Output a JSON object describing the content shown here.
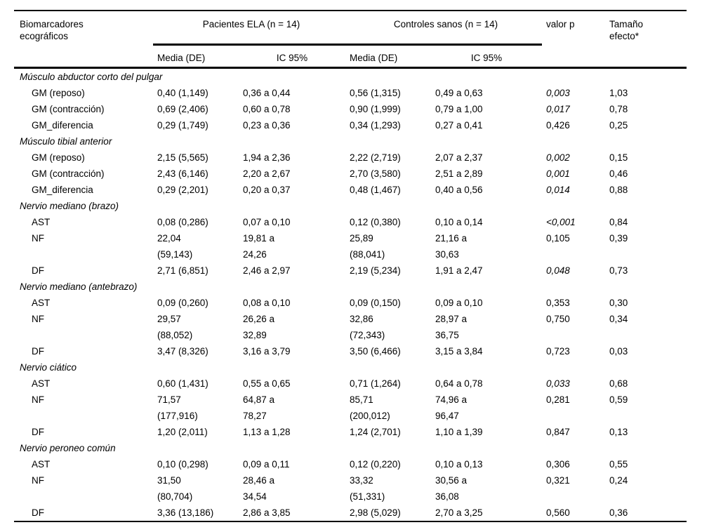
{
  "header": {
    "stub": "Biomarcadores\necográficos",
    "group_ela": "Pacientes ELA (n = 14)",
    "group_controls": "Controles sanos (n = 14)",
    "valor_p": "valor p",
    "effect_size": "Tamaño\nefecto*",
    "media_de_ela": "Media (DE)",
    "ic95_ela": "IC 95%",
    "media_de_controls": "Media (DE)",
    "ic95_controls": "IC 95%"
  },
  "sections": [
    {
      "title": "Músculo abductor corto del pulgar",
      "rows": [
        {
          "label": "GM (reposo)",
          "ela_media": "0,40 (1,149)",
          "ela_ic": "0,36 a 0,44",
          "ctrl_media": "0,56 (1,315)",
          "ctrl_ic": "0,49 a 0,63",
          "p": "0,003",
          "p_italic": true,
          "effect": "1,03"
        },
        {
          "label": "GM (contracción)",
          "ela_media": "0,69 (2,406)",
          "ela_ic": "0,60 a 0,78",
          "ctrl_media": "0,90 (1,999)",
          "ctrl_ic": "0,79 a 1,00",
          "p": "0,017",
          "p_italic": true,
          "effect": "0,78"
        },
        {
          "label": "GM_diferencia",
          "ela_media": "0,29 (1,749)",
          "ela_ic": "0,23 a 0,36",
          "ctrl_media": "0,34 (1,293)",
          "ctrl_ic": "0,27 a 0,41",
          "p": "0,426",
          "p_italic": false,
          "effect": "0,25"
        }
      ]
    },
    {
      "title": "Músculo tibial anterior",
      "rows": [
        {
          "label": "GM (reposo)",
          "ela_media": "2,15 (5,565)",
          "ela_ic": "1,94 a 2,36",
          "ctrl_media": "2,22 (2,719)",
          "ctrl_ic": "2,07 a 2,37",
          "p": "0,002",
          "p_italic": true,
          "effect": "0,15"
        },
        {
          "label": "GM (contracción)",
          "ela_media": "2,43 (6,146)",
          "ela_ic": "2,20 a 2,67",
          "ctrl_media": "2,70 (3,580)",
          "ctrl_ic": "2,51 a 2,89",
          "p": "0,001",
          "p_italic": true,
          "effect": "0,46"
        },
        {
          "label": "GM_diferencia",
          "ela_media": "0,29 (2,201)",
          "ela_ic": "0,20 a 0,37",
          "ctrl_media": "0,48 (1,467)",
          "ctrl_ic": "0,40 a 0,56",
          "p": "0,014",
          "p_italic": true,
          "effect": "0,88"
        }
      ]
    },
    {
      "title": "Nervio mediano (brazo)",
      "rows": [
        {
          "label": "AST",
          "ela_media": "0,08 (0,286)",
          "ela_ic": "0,07 a 0,10",
          "ctrl_media": "0,12 (0,380)",
          "ctrl_ic": "0,10 a 0,14",
          "p": "<0,001",
          "p_italic": true,
          "effect": "0,84"
        },
        {
          "label": "NF",
          "ela_media": "22,04\n(59,143)",
          "ela_ic": "19,81 a\n24,26",
          "ctrl_media": "25,89\n(88,041)",
          "ctrl_ic": "21,16 a\n30,63",
          "p": "0,105",
          "p_italic": false,
          "effect": "0,39"
        },
        {
          "label": "DF",
          "ela_media": "2,71 (6,851)",
          "ela_ic": "2,46 a 2,97",
          "ctrl_media": "2,19 (5,234)",
          "ctrl_ic": "1,91 a 2,47",
          "p": "0,048",
          "p_italic": true,
          "effect": "0,73"
        }
      ]
    },
    {
      "title": "Nervio mediano (antebrazo)",
      "rows": [
        {
          "label": "AST",
          "ela_media": "0,09 (0,260)",
          "ela_ic": "0,08 a 0,10",
          "ctrl_media": "0,09 (0,150)",
          "ctrl_ic": "0,09 a 0,10",
          "p": "0,353",
          "p_italic": false,
          "effect": "0,30"
        },
        {
          "label": "NF",
          "ela_media": "29,57\n(88,052)",
          "ela_ic": "26,26 a\n32,89",
          "ctrl_media": "32,86\n(72,343)",
          "ctrl_ic": "28,97 a\n36,75",
          "p": "0,750",
          "p_italic": false,
          "effect": "0,34"
        },
        {
          "label": "DF",
          "ela_media": "3,47 (8,326)",
          "ela_ic": "3,16 a 3,79",
          "ctrl_media": "3,50 (6,466)",
          "ctrl_ic": "3,15 a 3,84",
          "p": "0,723",
          "p_italic": false,
          "effect": "0,03"
        }
      ]
    },
    {
      "title": "Nervio ciático",
      "rows": [
        {
          "label": "AST",
          "ela_media": "0,60 (1,431)",
          "ela_ic": "0,55 a 0,65",
          "ctrl_media": "0,71 (1,264)",
          "ctrl_ic": "0,64 a 0,78",
          "p": "0,033",
          "p_italic": true,
          "effect": "0,68"
        },
        {
          "label": "NF",
          "ela_media": "71,57\n(177,916)",
          "ela_ic": "64,87 a\n78,27",
          "ctrl_media": "85,71\n(200,012)",
          "ctrl_ic": "74,96 a\n96,47",
          "p": "0,281",
          "p_italic": false,
          "effect": "0,59"
        },
        {
          "label": "DF",
          "ela_media": "1,20 (2,011)",
          "ela_ic": "1,13 a 1,28",
          "ctrl_media": "1,24 (2,701)",
          "ctrl_ic": "1,10 a 1,39",
          "p": "0,847",
          "p_italic": false,
          "effect": "0,13"
        }
      ]
    },
    {
      "title": "Nervio peroneo común",
      "rows": [
        {
          "label": "AST",
          "ela_media": "0,10 (0,298)",
          "ela_ic": "0,09 a 0,11",
          "ctrl_media": "0,12 (0,220)",
          "ctrl_ic": "0,10 a 0,13",
          "p": "0,306",
          "p_italic": false,
          "effect": "0,55"
        },
        {
          "label": "NF",
          "ela_media": "31,50\n(80,704)",
          "ela_ic": "28,46 a\n34,54",
          "ctrl_media": "33,32\n(51,331)",
          "ctrl_ic": "30,56 a\n36,08",
          "p": "0,321",
          "p_italic": false,
          "effect": "0,24"
        },
        {
          "label": "DF",
          "ela_media": "3,36 (13,186)",
          "ela_ic": "2,86 a 3,85",
          "ctrl_media": "2,98 (5,029)",
          "ctrl_ic": "2,70 a 3,25",
          "p": "0,560",
          "p_italic": false,
          "effect": "0,36"
        }
      ]
    }
  ]
}
